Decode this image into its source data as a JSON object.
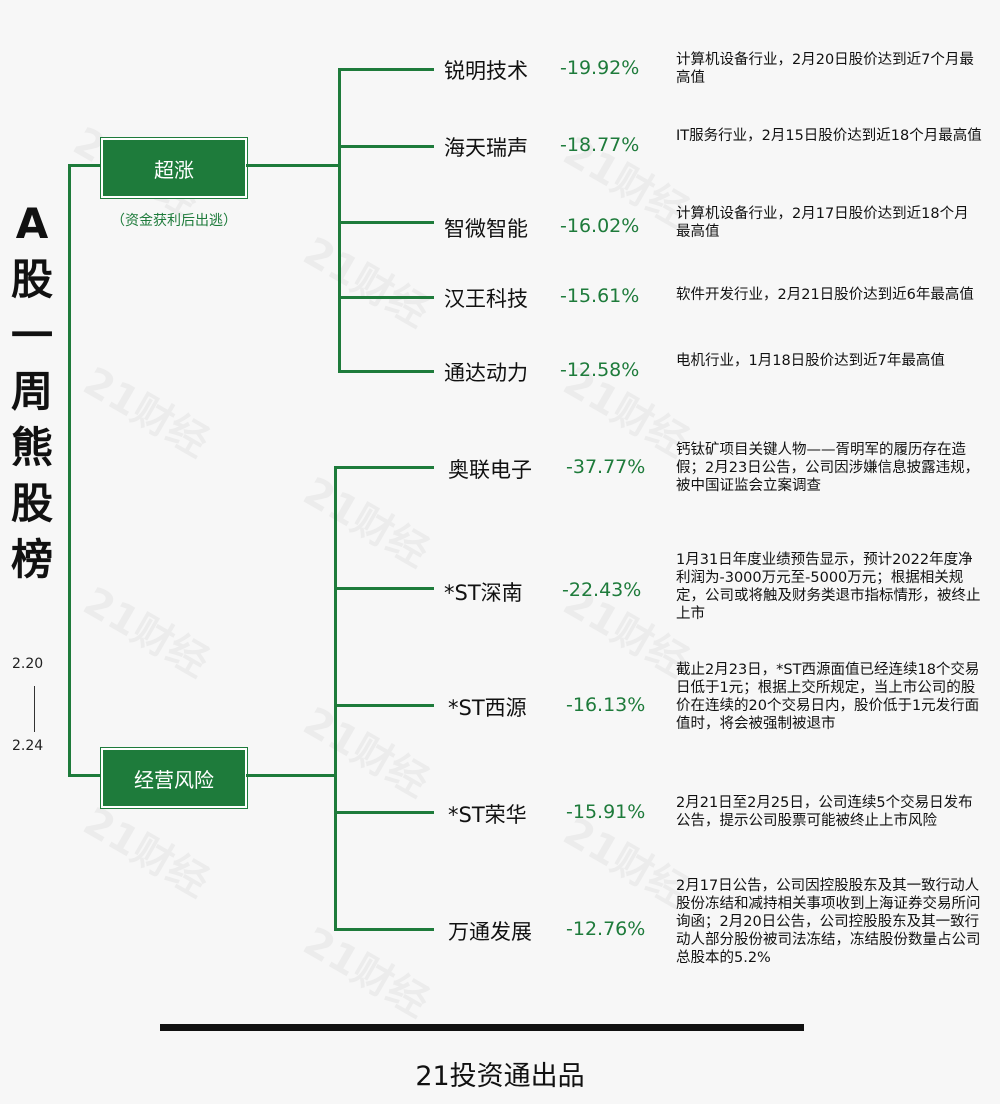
{
  "title_chars": [
    "A",
    "股",
    "一",
    "周",
    "熊",
    "股",
    "榜"
  ],
  "date_start": "2.20",
  "date_end": "2.24",
  "watermark": "21财经",
  "categories": [
    {
      "label": "超涨",
      "note": "（资金获利后出逃）",
      "stocks": [
        {
          "name": "锐明技术",
          "change": "-19.92%",
          "desc": "计算机设备行业，2月20日股价达到近7个月最高值"
        },
        {
          "name": "海天瑞声",
          "change": "-18.77%",
          "desc": "IT服务行业，2月15日股价达到近18个月最高值"
        },
        {
          "name": "智微智能",
          "change": "-16.02%",
          "desc": "计算机设备行业，2月17日股价达到近18个月最高值"
        },
        {
          "name": "汉王科技",
          "change": "-15.61%",
          "desc": "软件开发行业，2月21日股价达到近6年最高值"
        },
        {
          "name": "通达动力",
          "change": "-12.58%",
          "desc": "电机行业，1月18日股价达到近7年最高值"
        }
      ]
    },
    {
      "label": "经营风险",
      "note": "",
      "stocks": [
        {
          "name": "奥联电子",
          "change": "-37.77%",
          "desc": "钙钛矿项目关键人物——胥明军的履历存在造假；2月23日公告，公司因涉嫌信息披露违规，被中国证监会立案调查"
        },
        {
          "name": "*ST深南",
          "change": "-22.43%",
          "desc": "1月31日年度业绩预告显示，预计2022年度净利润为-3000万元至-5000万元；根据相关规定，公司或将触及财务类退市指标情形，被终止上市"
        },
        {
          "name": "*ST西源",
          "change": "-16.13%",
          "desc": "截止2月23日，*ST西源面值已经连续18个交易日低于1元；根据上交所规定，当上市公司的股价在连续的20个交易日内，股价低于1元发行面值时，将会被强制被退市"
        },
        {
          "name": "*ST荣华",
          "change": "-15.91%",
          "desc": "2月21日至2月25日，公司连续5个交易日发布公告，提示公司股票可能被终止上市风险"
        },
        {
          "name": "万通发展",
          "change": "-12.76%",
          "desc": "2月17日公告，公司因控股股东及其一致行动人股份冻结和减持相关事项收到上海证券交易所问询函；2月20日公告，公司控股股东及其一致行动人部分股份被司法冻结，冻结股份数量占公司总股本的5.2%"
        }
      ]
    }
  ],
  "footer": "21投资通出品",
  "colors": {
    "accent": "#1e7b3b",
    "text": "#111111",
    "background": "#f7f7f7"
  }
}
